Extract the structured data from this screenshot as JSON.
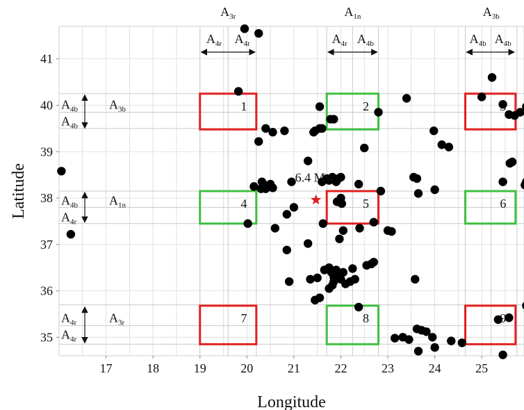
{
  "chart_data": {
    "type": "scatter",
    "xlabel": "Longitude",
    "ylabel": "Latitude",
    "xlim": [
      16,
      25.9
    ],
    "ylim": [
      34.6,
      41.7
    ],
    "x_ticks": [
      17,
      18,
      19,
      20,
      21,
      22,
      23,
      24,
      25
    ],
    "y_ticks": [
      35,
      36,
      37,
      38,
      39,
      40,
      41
    ],
    "grid_x": [
      16,
      16.5,
      17,
      17.5,
      18,
      18.5,
      19,
      19.5,
      20,
      20.5,
      21,
      21.5,
      22,
      22.5,
      23,
      23.5,
      24,
      24.5,
      25,
      25.5
    ],
    "band_lines_x": [
      19,
      19.6,
      20.2,
      21.7,
      22.25,
      22.8,
      24.65,
      25.2,
      25.75
    ],
    "band_lines_y": [
      34.85,
      35.25,
      35.7,
      37.45,
      37.8,
      38.15,
      39.5,
      39.85,
      40.25
    ],
    "events": [
      {
        "x": 19.95,
        "y": 41.65
      },
      {
        "x": 20.25,
        "y": 41.55
      },
      {
        "x": 19.82,
        "y": 40.3
      },
      {
        "x": 21.55,
        "y": 39.97
      },
      {
        "x": 21.78,
        "y": 39.7
      },
      {
        "x": 21.85,
        "y": 39.7
      },
      {
        "x": 21.55,
        "y": 39.5
      },
      {
        "x": 21.6,
        "y": 39.5
      },
      {
        "x": 21.45,
        "y": 39.45
      },
      {
        "x": 21.42,
        "y": 39.42
      },
      {
        "x": 20.4,
        "y": 39.5
      },
      {
        "x": 20.55,
        "y": 39.42
      },
      {
        "x": 20.8,
        "y": 39.45
      },
      {
        "x": 20.25,
        "y": 39.22
      },
      {
        "x": 22.5,
        "y": 39.08
      },
      {
        "x": 22.8,
        "y": 39.85
      },
      {
        "x": 23.4,
        "y": 40.15
      },
      {
        "x": 23.98,
        "y": 39.45
      },
      {
        "x": 24.15,
        "y": 39.15
      },
      {
        "x": 24.3,
        "y": 39.1
      },
      {
        "x": 25.22,
        "y": 40.6
      },
      {
        "x": 25.0,
        "y": 40.18
      },
      {
        "x": 25.45,
        "y": 40.02
      },
      {
        "x": 25.58,
        "y": 39.8
      },
      {
        "x": 25.7,
        "y": 39.78
      },
      {
        "x": 25.82,
        "y": 39.85
      },
      {
        "x": 25.95,
        "y": 39.97
      },
      {
        "x": 25.6,
        "y": 38.75
      },
      {
        "x": 25.65,
        "y": 38.78
      },
      {
        "x": 25.45,
        "y": 38.35
      },
      {
        "x": 25.95,
        "y": 38.35
      },
      {
        "x": 25.92,
        "y": 38.28
      },
      {
        "x": 21.3,
        "y": 38.8
      },
      {
        "x": 20.95,
        "y": 38.35
      },
      {
        "x": 20.15,
        "y": 38.25
      },
      {
        "x": 20.3,
        "y": 38.2
      },
      {
        "x": 20.35,
        "y": 38.3
      },
      {
        "x": 20.4,
        "y": 38.2
      },
      {
        "x": 20.45,
        "y": 38.25
      },
      {
        "x": 20.5,
        "y": 38.3
      },
      {
        "x": 20.55,
        "y": 38.22
      },
      {
        "x": 20.32,
        "y": 38.35
      },
      {
        "x": 21.7,
        "y": 38.42
      },
      {
        "x": 21.75,
        "y": 38.38
      },
      {
        "x": 21.82,
        "y": 38.45
      },
      {
        "x": 21.9,
        "y": 38.35
      },
      {
        "x": 21.95,
        "y": 38.42
      },
      {
        "x": 22.0,
        "y": 38.45
      },
      {
        "x": 21.6,
        "y": 38.35
      },
      {
        "x": 22.0,
        "y": 38.0
      },
      {
        "x": 21.92,
        "y": 37.92
      },
      {
        "x": 22.02,
        "y": 37.88
      },
      {
        "x": 22.38,
        "y": 38.3
      },
      {
        "x": 22.85,
        "y": 38.15
      },
      {
        "x": 23.55,
        "y": 38.45
      },
      {
        "x": 23.62,
        "y": 38.42
      },
      {
        "x": 23.65,
        "y": 38.1
      },
      {
        "x": 24.0,
        "y": 38.18
      },
      {
        "x": 21.0,
        "y": 37.8
      },
      {
        "x": 20.85,
        "y": 37.65
      },
      {
        "x": 20.6,
        "y": 37.35
      },
      {
        "x": 20.02,
        "y": 37.45
      },
      {
        "x": 21.62,
        "y": 37.45
      },
      {
        "x": 22.05,
        "y": 37.3
      },
      {
        "x": 22.4,
        "y": 37.35
      },
      {
        "x": 22.7,
        "y": 37.48
      },
      {
        "x": 23.0,
        "y": 37.3
      },
      {
        "x": 23.08,
        "y": 37.28
      },
      {
        "x": 21.97,
        "y": 37.12
      },
      {
        "x": 21.3,
        "y": 37.02
      },
      {
        "x": 20.85,
        "y": 36.88
      },
      {
        "x": 20.9,
        "y": 36.2
      },
      {
        "x": 21.35,
        "y": 36.25
      },
      {
        "x": 21.5,
        "y": 36.28
      },
      {
        "x": 21.65,
        "y": 36.45
      },
      {
        "x": 21.75,
        "y": 36.5
      },
      {
        "x": 21.8,
        "y": 36.4
      },
      {
        "x": 21.85,
        "y": 36.3
      },
      {
        "x": 21.9,
        "y": 36.45
      },
      {
        "x": 21.95,
        "y": 36.35
      },
      {
        "x": 22.0,
        "y": 36.25
      },
      {
        "x": 22.05,
        "y": 36.4
      },
      {
        "x": 22.1,
        "y": 36.15
      },
      {
        "x": 22.2,
        "y": 36.2
      },
      {
        "x": 22.25,
        "y": 36.48
      },
      {
        "x": 22.3,
        "y": 36.25
      },
      {
        "x": 21.75,
        "y": 36.05
      },
      {
        "x": 21.82,
        "y": 36.12
      },
      {
        "x": 21.85,
        "y": 36.2
      },
      {
        "x": 22.65,
        "y": 36.58
      },
      {
        "x": 22.7,
        "y": 36.62
      },
      {
        "x": 22.55,
        "y": 36.55
      },
      {
        "x": 21.45,
        "y": 35.8
      },
      {
        "x": 21.55,
        "y": 35.85
      },
      {
        "x": 22.38,
        "y": 35.65
      },
      {
        "x": 23.58,
        "y": 36.25
      },
      {
        "x": 23.15,
        "y": 34.98
      },
      {
        "x": 23.32,
        "y": 35.0
      },
      {
        "x": 23.45,
        "y": 34.95
      },
      {
        "x": 23.62,
        "y": 35.18
      },
      {
        "x": 23.72,
        "y": 35.15
      },
      {
        "x": 23.82,
        "y": 35.12
      },
      {
        "x": 23.95,
        "y": 35.0
      },
      {
        "x": 24.35,
        "y": 34.92
      },
      {
        "x": 24.58,
        "y": 34.88
      },
      {
        "x": 24.0,
        "y": 34.78
      },
      {
        "x": 23.65,
        "y": 34.7
      },
      {
        "x": 25.35,
        "y": 35.38
      },
      {
        "x": 25.58,
        "y": 35.42
      },
      {
        "x": 25.45,
        "y": 34.62
      },
      {
        "x": 25.95,
        "y": 35.68
      },
      {
        "x": 16.05,
        "y": 38.58
      },
      {
        "x": 16.25,
        "y": 37.22
      }
    ],
    "mainshock": {
      "x": 21.47,
      "y": 37.96,
      "label": "6.4 Mw",
      "color": "#e02020"
    },
    "boxes": [
      {
        "id": "1",
        "x0": 19.0,
        "x1": 20.2,
        "y0": 39.48,
        "y1": 40.25,
        "color": "#e02020"
      },
      {
        "id": "2",
        "x0": 21.7,
        "x1": 22.8,
        "y0": 39.48,
        "y1": 40.25,
        "color": "#3fbf3f"
      },
      {
        "id": "3",
        "x0": 24.65,
        "x1": 25.72,
        "y0": 39.48,
        "y1": 40.25,
        "color": "#e02020"
      },
      {
        "id": "4",
        "x0": 19.0,
        "x1": 20.2,
        "y0": 37.45,
        "y1": 38.15,
        "color": "#3fbf3f"
      },
      {
        "id": "5",
        "x0": 21.7,
        "x1": 22.8,
        "y0": 37.45,
        "y1": 38.15,
        "color": "#e02020"
      },
      {
        "id": "6",
        "x0": 24.65,
        "x1": 25.72,
        "y0": 37.45,
        "y1": 38.15,
        "color": "#3fbf3f"
      },
      {
        "id": "7",
        "x0": 19.0,
        "x1": 20.2,
        "y0": 34.85,
        "y1": 35.68,
        "color": "#e02020"
      },
      {
        "id": "8",
        "x0": 21.7,
        "x1": 22.8,
        "y0": 34.85,
        "y1": 35.68,
        "color": "#3fbf3f"
      },
      {
        "id": "9",
        "x0": 24.65,
        "x1": 25.72,
        "y0": 34.85,
        "y1": 35.68,
        "color": "#e02020"
      }
    ],
    "top_annotations": [
      {
        "main": "A",
        "sub": "3r",
        "x": 19.6
      },
      {
        "main": "A",
        "sub": "1n",
        "x": 22.25
      },
      {
        "main": "A",
        "sub": "3b",
        "x": 25.2
      }
    ],
    "top_subgroups": [
      {
        "x0": 19.0,
        "x1": 20.2,
        "left": {
          "main": "A",
          "sub": "4r"
        },
        "right": {
          "main": "A",
          "sub": "4r"
        }
      },
      {
        "x0": 21.7,
        "x1": 22.8,
        "left": {
          "main": "A",
          "sub": "4r"
        },
        "right": {
          "main": "A",
          "sub": "4b"
        }
      },
      {
        "x0": 24.65,
        "x1": 25.72,
        "left": {
          "main": "A",
          "sub": "4b"
        },
        "right": {
          "main": "A",
          "sub": "4b"
        }
      }
    ],
    "left_annotations": [
      {
        "y0": 39.48,
        "y1": 40.25,
        "top": {
          "main": "A",
          "sub": "4b"
        },
        "bottom": {
          "main": "A",
          "sub": "4b"
        },
        "side": {
          "main": "A",
          "sub": "3b"
        }
      },
      {
        "y0": 37.45,
        "y1": 38.15,
        "top": {
          "main": "A",
          "sub": "4b"
        },
        "bottom": {
          "main": "A",
          "sub": "4r"
        },
        "side": {
          "main": "A",
          "sub": "1n"
        }
      },
      {
        "y0": 34.85,
        "y1": 35.68,
        "top": {
          "main": "A",
          "sub": "4r"
        },
        "bottom": {
          "main": "A",
          "sub": "4r"
        },
        "side": {
          "main": "A",
          "sub": "3r"
        }
      }
    ],
    "colors": {
      "point": "#000000",
      "grid": "#d9d9d9",
      "band_line": "#c9c9c9",
      "red_box": "#e02020",
      "green_box": "#3fbf3f"
    }
  }
}
